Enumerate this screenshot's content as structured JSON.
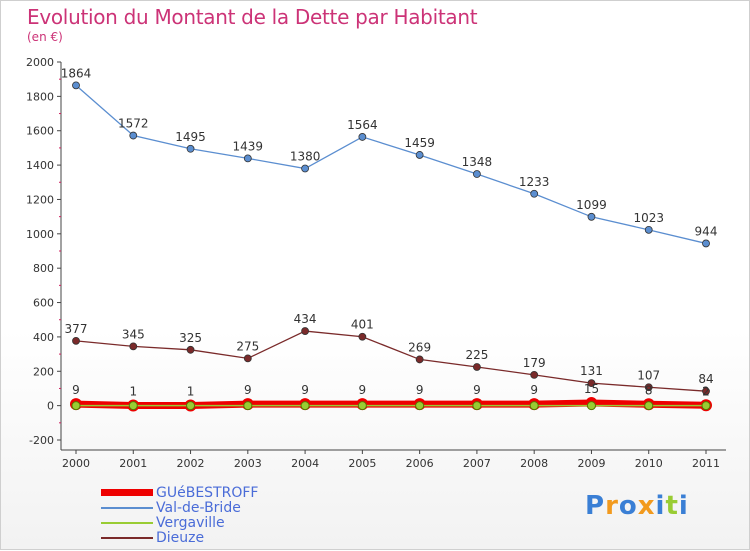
{
  "chart_data": {
    "type": "line",
    "title": "Evolution du Montant de la Dette par Habitant",
    "subtitle": "(en €)",
    "categories": [
      "2000",
      "2001",
      "2002",
      "2003",
      "2004",
      "2005",
      "2006",
      "2007",
      "2008",
      "2009",
      "2010",
      "2011"
    ],
    "ylim": [
      -200,
      2000
    ],
    "yticks": [
      -200,
      0,
      200,
      400,
      600,
      800,
      1000,
      1200,
      1400,
      1600,
      1800,
      2000
    ],
    "grid": false,
    "legend_position": "bottom-left",
    "series": [
      {
        "name": "GUéBESTROFF",
        "color": "#ee0000",
        "values": [
          9,
          1,
          1,
          9,
          9,
          9,
          9,
          9,
          9,
          15,
          8,
          2
        ]
      },
      {
        "name": "Val-de-Bride",
        "color": "#5b8ed0",
        "values": [
          1864,
          1572,
          1495,
          1439,
          1380,
          1564,
          1459,
          1348,
          1233,
          1099,
          1023,
          944
        ]
      },
      {
        "name": "Vergaville",
        "color": "#99cc33",
        "values": [
          0,
          0,
          0,
          0,
          0,
          0,
          0,
          0,
          0,
          0,
          0,
          0
        ]
      },
      {
        "name": "Dieuze",
        "color": "#7a2a2a",
        "values": [
          377,
          345,
          325,
          275,
          434,
          401,
          269,
          225,
          179,
          131,
          107,
          84
        ]
      }
    ]
  },
  "logo": {
    "letters": [
      "P",
      "r",
      "o",
      "x",
      "i",
      "t",
      "i"
    ],
    "colors": [
      "#3a7fd5",
      "#f29a1e",
      "#3a7fd5",
      "#f29a1e",
      "#3a7fd5",
      "#99cc33",
      "#3a7fd5"
    ]
  }
}
